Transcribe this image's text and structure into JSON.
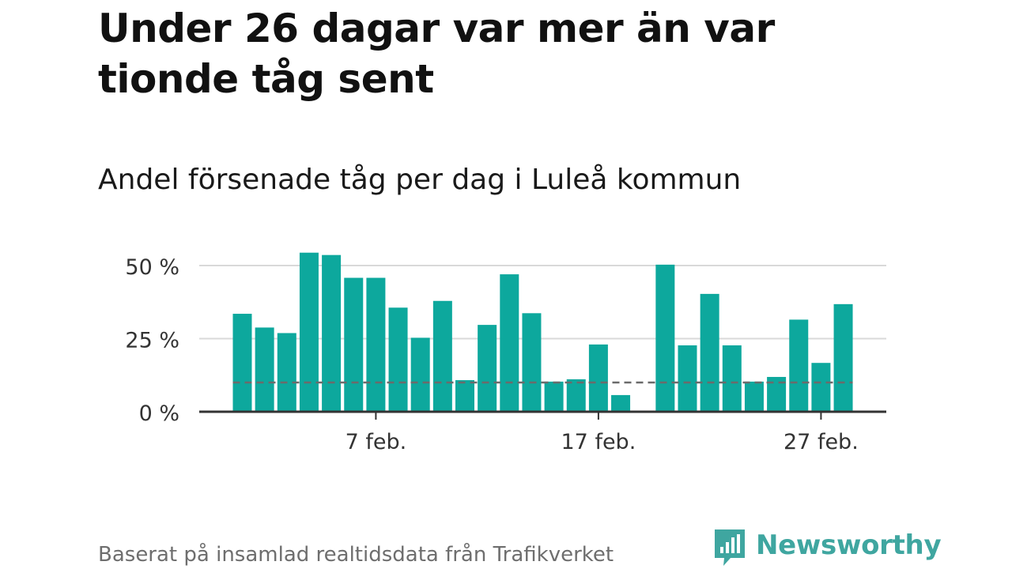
{
  "title": "Under 26 dagar var mer än var tionde tåg sent",
  "subtitle": "Andel försenade tåg per dag i Luleå kommun",
  "source": "Baserat på insamlad realtidsdata från Trafikverket",
  "logo": {
    "text": "Newsworthy",
    "color": "#3fa6a0"
  },
  "colors": {
    "bar": "#0da89d",
    "reference": "#6b6b6b",
    "grid": "#d9d9d9",
    "axis": "#333333"
  },
  "chart_data": {
    "type": "bar",
    "x": [
      "2025-02-01",
      "2025-02-02",
      "2025-02-03",
      "2025-02-04",
      "2025-02-05",
      "2025-02-06",
      "2025-02-07",
      "2025-02-08",
      "2025-02-09",
      "2025-02-10",
      "2025-02-11",
      "2025-02-12",
      "2025-02-13",
      "2025-02-14",
      "2025-02-15",
      "2025-02-16",
      "2025-02-17",
      "2025-02-18",
      "2025-02-19",
      "2025-02-20",
      "2025-02-21",
      "2025-02-22",
      "2025-02-23",
      "2025-02-24",
      "2025-02-25",
      "2025-02-26",
      "2025-02-27",
      "2025-02-28"
    ],
    "values": [
      33.5,
      28.8,
      26.9,
      54.4,
      53.6,
      45.8,
      45.8,
      35.6,
      25.3,
      37.9,
      10.8,
      29.7,
      47.0,
      33.7,
      10.3,
      11.1,
      23.0,
      5.7,
      null,
      50.3,
      22.7,
      40.3,
      22.7,
      10.3,
      11.9,
      31.5,
      16.7,
      36.8
    ],
    "reference_line": {
      "value": 10,
      "style": "dashed"
    },
    "yticks": [
      "0 %",
      "25 %",
      "50 %"
    ],
    "ytick_values": [
      0,
      25,
      50
    ],
    "xticks": [
      {
        "x": "2025-02-07",
        "label": "7 feb."
      },
      {
        "x": "2025-02-17",
        "label": "17 feb."
      },
      {
        "x": "2025-02-27",
        "label": "27 feb."
      }
    ],
    "ylim": [
      0,
      55
    ],
    "grid": true,
    "xlabel": "",
    "ylabel": ""
  }
}
